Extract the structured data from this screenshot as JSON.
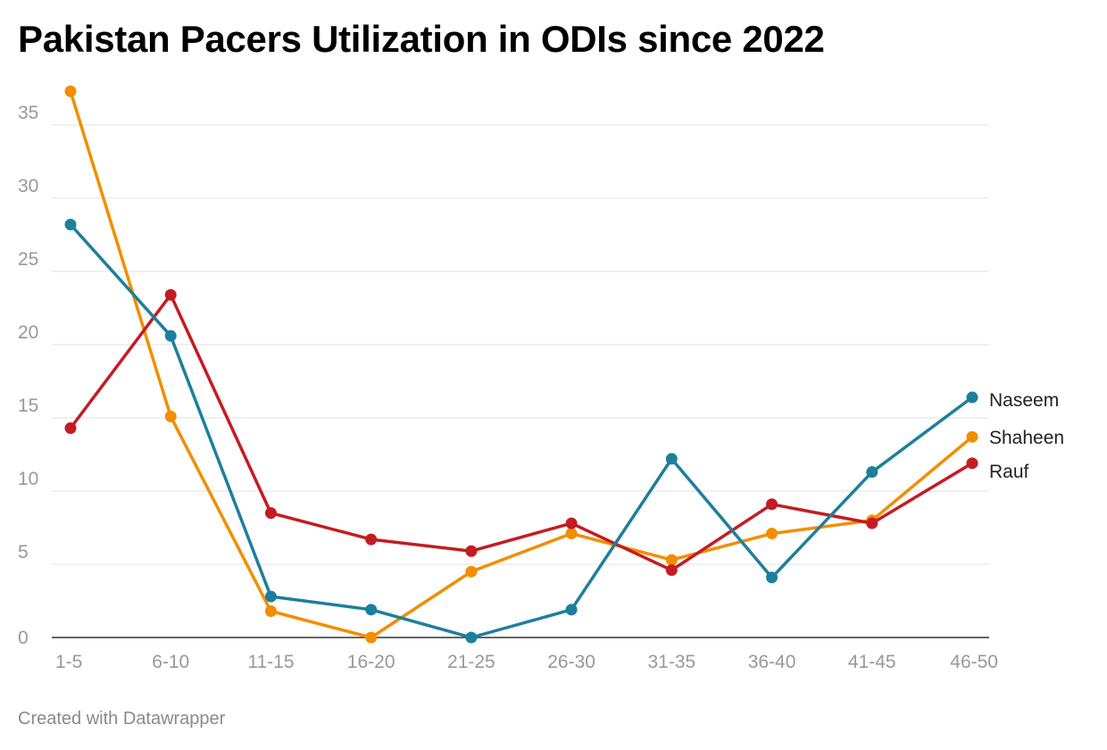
{
  "title": "Pakistan Pacers Utilization in ODIs since 2022",
  "credit": "Created with Datawrapper",
  "chart_data": {
    "type": "line",
    "title": "Pakistan Pacers Utilization in ODIs since 2022",
    "xlabel": "",
    "ylabel": "",
    "categories": [
      "1-5",
      "6-10",
      "11-15",
      "16-20",
      "21-25",
      "26-30",
      "31-35",
      "36-40",
      "41-45",
      "46-50"
    ],
    "ylim": [
      0,
      37.3
    ],
    "yticks": [
      "0",
      "5",
      "10",
      "15",
      "20",
      "25",
      "30",
      "35"
    ],
    "grid": true,
    "legend": "direct labels at line ends (right)",
    "series": [
      {
        "name": "Shaheen",
        "color": "#f28e00",
        "values": [
          37.3,
          15.1,
          1.8,
          0,
          4.5,
          7.1,
          5.3,
          7.1,
          8.0,
          13.7
        ]
      },
      {
        "name": "Rauf",
        "color": "#c51b22",
        "values": [
          14.3,
          23.4,
          8.5,
          6.7,
          5.9,
          7.8,
          4.6,
          9.1,
          7.8,
          11.9
        ]
      },
      {
        "name": "Naseem",
        "color": "#1d7f9c",
        "values": [
          28.2,
          20.6,
          2.8,
          1.9,
          0,
          1.9,
          12.2,
          4.1,
          11.3,
          16.4
        ]
      }
    ]
  }
}
